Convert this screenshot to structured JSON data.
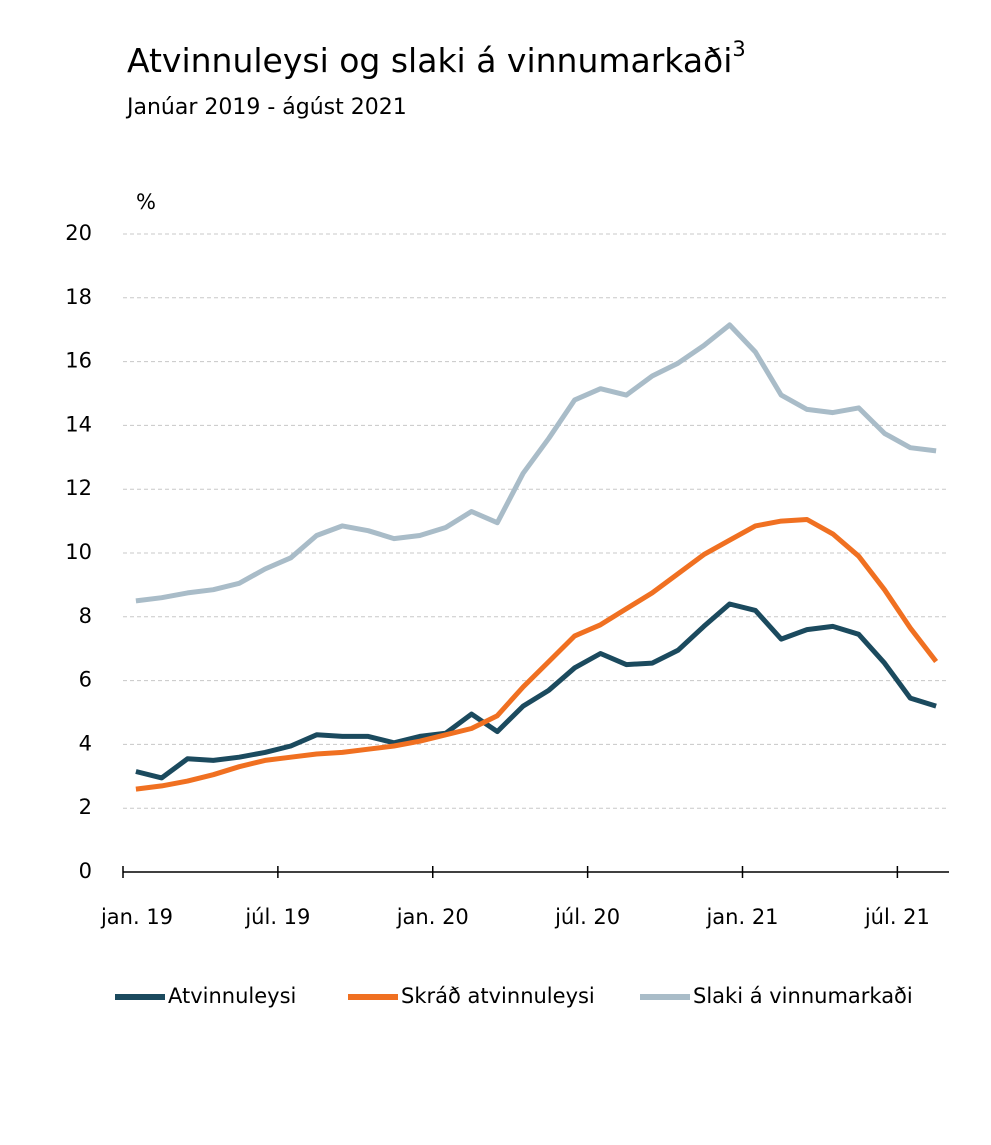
{
  "chart_data": {
    "type": "line",
    "title": "Atvinnuleysi og slaki á vinnumarkaði",
    "title_footnote": "3",
    "subtitle": "Janúar 2019 - ágúst 2021",
    "y_axis_label": "%",
    "categories": [
      "jan. 19",
      null,
      null,
      null,
      null,
      null,
      "júl. 19",
      null,
      null,
      null,
      null,
      null,
      "jan. 20",
      null,
      null,
      null,
      null,
      null,
      "júl. 20",
      null,
      null,
      null,
      null,
      null,
      "jan. 21",
      null,
      null,
      null,
      null,
      null,
      "júl. 21",
      null
    ],
    "series": [
      {
        "name": "Atvinnuleysi",
        "color": "#1b4a5e",
        "values": [
          3.15,
          2.95,
          3.55,
          3.5,
          3.6,
          3.75,
          3.95,
          4.3,
          4.25,
          4.25,
          4.05,
          4.25,
          4.35,
          4.95,
          4.4,
          5.2,
          5.7,
          6.4,
          6.85,
          6.5,
          6.55,
          6.95,
          7.7,
          8.4,
          8.2,
          7.3,
          7.6,
          7.7,
          7.45,
          6.55,
          5.45,
          5.2
        ]
      },
      {
        "name": "Skráð atvinnuleysi",
        "color": "#f07021",
        "values": [
          2.6,
          2.7,
          2.85,
          3.05,
          3.3,
          3.5,
          3.6,
          3.7,
          3.75,
          3.85,
          3.95,
          4.1,
          4.3,
          4.5,
          4.9,
          5.8,
          6.6,
          7.4,
          7.75,
          8.25,
          8.75,
          9.35,
          9.95,
          10.4,
          10.85,
          11.0,
          11.05,
          10.6,
          9.9,
          8.85,
          7.65,
          6.6
        ]
      },
      {
        "name": "Slaki á vinnumarkaði",
        "color": "#a9bcc8",
        "values": [
          8.5,
          8.6,
          8.75,
          8.85,
          9.05,
          9.5,
          9.85,
          10.55,
          10.85,
          10.7,
          10.45,
          10.55,
          10.8,
          11.3,
          10.95,
          12.5,
          13.6,
          14.8,
          15.15,
          14.95,
          15.55,
          15.95,
          16.5,
          17.15,
          16.3,
          14.95,
          14.5,
          14.4,
          14.55,
          13.75,
          13.3,
          13.2
        ]
      }
    ],
    "ylim": [
      0,
      20
    ],
    "yticks": [
      0,
      2,
      4,
      6,
      8,
      10,
      12,
      14,
      16,
      18,
      20
    ],
    "grid": true,
    "legend": "bottom"
  }
}
